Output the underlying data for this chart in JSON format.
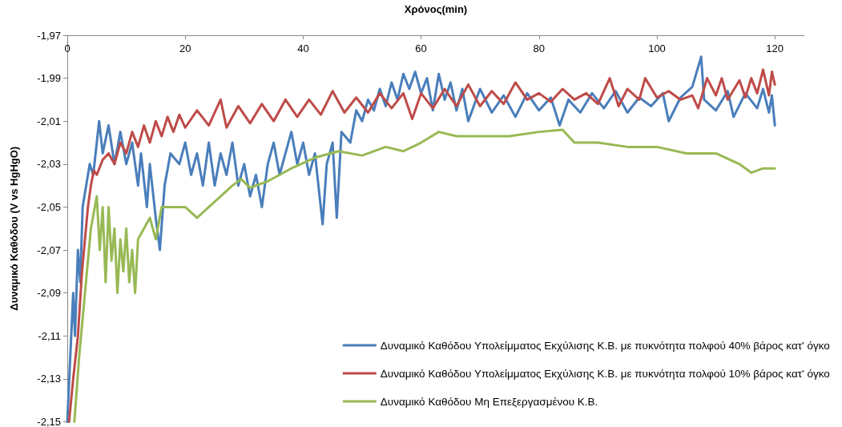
{
  "chart_data": {
    "type": "line",
    "xlabel": "Χρόνος(min)",
    "ylabel": "Δυναμικό Καθόδου (V vs HgHgO)",
    "xlim": [
      0,
      125
    ],
    "xticks": [
      0,
      20,
      40,
      60,
      80,
      100,
      120
    ],
    "ylim": [
      -2.15,
      -1.97
    ],
    "yticks": [
      {
        "value": -2.15,
        "label": "-2,15"
      },
      {
        "value": -2.13,
        "label": "-2,13"
      },
      {
        "value": -2.11,
        "label": "-2,11"
      },
      {
        "value": -2.09,
        "label": "-2,09"
      },
      {
        "value": -2.07,
        "label": "-2,07"
      },
      {
        "value": -2.05,
        "label": "-2,05"
      },
      {
        "value": -2.03,
        "label": "-2,03"
      },
      {
        "value": -2.01,
        "label": "-2,01"
      },
      {
        "value": -1.99,
        "label": "-1,99"
      },
      {
        "value": -1.97,
        "label": "-1,97"
      }
    ],
    "grid": false,
    "legend": "bottom right",
    "marker": "none",
    "line_style": "solid",
    "series": [
      {
        "name": "Δυναμικό Καθόδου Υπολείμματος Εκχύλισης Κ.Β. με πυκνότητα πολφού 40% βάρος κατ' όγκο",
        "color": "#4a7ebb",
        "x": [
          0,
          0.5,
          1,
          1.3,
          1.8,
          2.2,
          2.6,
          3.2,
          3.8,
          4.4,
          5,
          5.4,
          6,
          7,
          8,
          9,
          10,
          11,
          12,
          12.5,
          13.5,
          14,
          15,
          15.7,
          16.5,
          17.5,
          19,
          20,
          21,
          22,
          23,
          24,
          25,
          26,
          27,
          28,
          29,
          30,
          31,
          32,
          33,
          34,
          35,
          36,
          37,
          38,
          39,
          40,
          41,
          42,
          43.3,
          44,
          45,
          45.7,
          46.5,
          48,
          49,
          50,
          51,
          52,
          53,
          54,
          55,
          56,
          57,
          58,
          59,
          60,
          61,
          62,
          63,
          64,
          65,
          66,
          67,
          68,
          70,
          72,
          74,
          76,
          78,
          80,
          82,
          83.5,
          85,
          87,
          89,
          91,
          93,
          95,
          97,
          99,
          101,
          102,
          104,
          106,
          107.5,
          108,
          110,
          112,
          113,
          115,
          117,
          118,
          119,
          119.5,
          120
        ],
        "values": [
          -2.15,
          -2.12,
          -2.09,
          -2.11,
          -2.07,
          -2.085,
          -2.05,
          -2.04,
          -2.03,
          -2.035,
          -2.02,
          -2.01,
          -2.025,
          -2.012,
          -2.03,
          -2.015,
          -2.03,
          -2.02,
          -2.04,
          -2.025,
          -2.05,
          -2.03,
          -2.055,
          -2.07,
          -2.04,
          -2.025,
          -2.03,
          -2.02,
          -2.035,
          -2.025,
          -2.04,
          -2.02,
          -2.04,
          -2.025,
          -2.035,
          -2.02,
          -2.04,
          -2.03,
          -2.045,
          -2.035,
          -2.05,
          -2.03,
          -2.02,
          -2.035,
          -2.025,
          -2.015,
          -2.03,
          -2.02,
          -2.035,
          -2.025,
          -2.058,
          -2.03,
          -2.02,
          -2.055,
          -2.015,
          -2.02,
          -2.005,
          -2.01,
          -2.0,
          -2.005,
          -1.995,
          -2.003,
          -1.992,
          -2.0,
          -1.988,
          -1.995,
          -1.987,
          -1.997,
          -1.99,
          -2.005,
          -1.988,
          -2.0,
          -1.992,
          -2.005,
          -1.995,
          -2.01,
          -1.995,
          -2.006,
          -1.998,
          -2.008,
          -1.997,
          -2.005,
          -1.999,
          -2.012,
          -2.0,
          -2.006,
          -1.997,
          -2.004,
          -1.996,
          -2.006,
          -1.999,
          -2.003,
          -1.997,
          -2.01,
          -1.999,
          -1.994,
          -1.98,
          -2.0,
          -2.005,
          -1.996,
          -2.008,
          -1.997,
          -2.004,
          -1.995,
          -2.006,
          -1.998,
          -2.012
        ]
      },
      {
        "name": "Δυναμικό Καθόδου Υπολείμματος Εκχύλισης Κ.Β. με πυκνότητα πολφού 10% βάρος κατ' όγκο",
        "color": "#be4b48",
        "x": [
          0.3,
          1,
          1.8,
          2.5,
          3,
          3.5,
          4,
          4.5,
          5,
          6,
          7,
          8,
          9,
          10,
          11,
          12,
          13,
          14,
          15,
          16,
          17,
          18,
          19,
          20,
          22,
          24,
          26,
          27,
          29,
          31,
          33,
          35,
          37,
          39,
          41,
          43,
          45,
          47,
          49,
          51,
          53,
          55,
          57,
          58.5,
          60,
          62,
          64,
          66,
          68,
          70,
          72,
          74,
          76,
          78,
          80,
          82,
          84,
          86,
          88,
          90,
          92,
          93.5,
          95,
          97,
          98,
          100,
          102,
          104,
          106,
          107,
          108.5,
          110,
          111,
          112,
          114,
          115,
          116,
          117,
          118,
          119,
          119.5,
          120
        ],
        "values": [
          -2.15,
          -2.13,
          -2.11,
          -2.08,
          -2.065,
          -2.05,
          -2.04,
          -2.033,
          -2.035,
          -2.028,
          -2.025,
          -2.03,
          -2.02,
          -2.025,
          -2.015,
          -2.022,
          -2.012,
          -2.02,
          -2.01,
          -2.017,
          -2.008,
          -2.015,
          -2.007,
          -2.013,
          -2.005,
          -2.012,
          -2.0,
          -2.013,
          -2.003,
          -2.011,
          -2.002,
          -2.01,
          -2.0,
          -2.008,
          -2.0,
          -2.007,
          -1.996,
          -2.006,
          -1.999,
          -2.006,
          -1.997,
          -2.004,
          -1.997,
          -2.009,
          -1.997,
          -2.004,
          -1.995,
          -2.003,
          -1.993,
          -2.003,
          -1.996,
          -2.002,
          -1.992,
          -2.0,
          -1.997,
          -2.001,
          -1.995,
          -2.0,
          -1.997,
          -2.002,
          -1.99,
          -2.003,
          -1.995,
          -2.0,
          -1.99,
          -1.999,
          -1.996,
          -2.0,
          -1.998,
          -2.004,
          -1.99,
          -1.998,
          -1.99,
          -2.0,
          -1.991,
          -1.999,
          -1.99,
          -1.997,
          -1.986,
          -1.998,
          -1.987,
          -1.993
        ]
      },
      {
        "name": "Δυναμικό Καθόδου Μη Επεξεργασμένου Κ.Β.",
        "color": "#98b954",
        "x": [
          1.2,
          2,
          3,
          4,
          5,
          5.5,
          6,
          6.5,
          7,
          7.5,
          8,
          8.5,
          9,
          9.5,
          10,
          10.5,
          11,
          11.5,
          12,
          13,
          14,
          15,
          16,
          18,
          20,
          22,
          24,
          26,
          28,
          29.5,
          31,
          34,
          38,
          42,
          46,
          50,
          54,
          57,
          60,
          63,
          66,
          70,
          75,
          80,
          84,
          86,
          90,
          95,
          100,
          105,
          110,
          114,
          116,
          118,
          120
        ],
        "values": [
          -2.15,
          -2.12,
          -2.09,
          -2.06,
          -2.045,
          -2.07,
          -2.05,
          -2.085,
          -2.05,
          -2.075,
          -2.06,
          -2.09,
          -2.065,
          -2.08,
          -2.06,
          -2.085,
          -2.07,
          -2.09,
          -2.065,
          -2.06,
          -2.055,
          -2.065,
          -2.05,
          -2.05,
          -2.05,
          -2.055,
          -2.05,
          -2.045,
          -2.04,
          -2.037,
          -2.041,
          -2.038,
          -2.032,
          -2.027,
          -2.024,
          -2.026,
          -2.022,
          -2.024,
          -2.02,
          -2.015,
          -2.017,
          -2.017,
          -2.017,
          -2.015,
          -2.014,
          -2.02,
          -2.02,
          -2.022,
          -2.022,
          -2.025,
          -2.025,
          -2.03,
          -2.034,
          -2.032,
          -2.032
        ]
      }
    ]
  }
}
